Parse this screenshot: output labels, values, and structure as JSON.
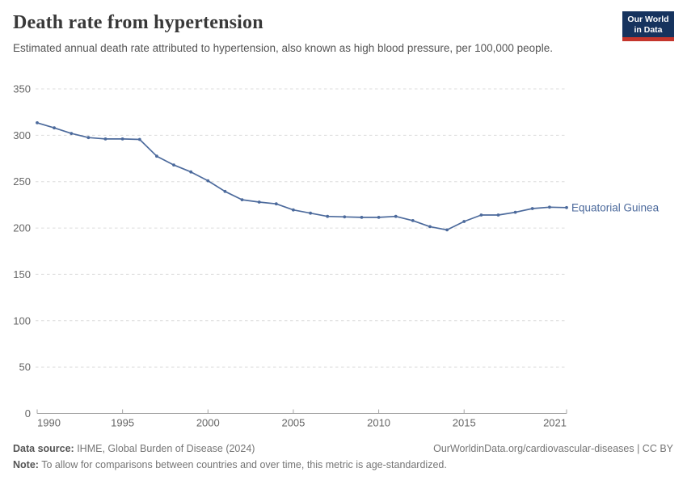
{
  "header": {
    "title": "Death rate from hypertension",
    "subtitle": "Estimated annual death rate attributed to hypertension, also known as high blood pressure, per 100,000 people.",
    "logo": {
      "line1": "Our World",
      "line2": "in Data"
    }
  },
  "chart_data": {
    "type": "line",
    "title": "Death rate from hypertension",
    "x": [
      1990,
      1991,
      1992,
      1993,
      1994,
      1995,
      1996,
      1997,
      1998,
      1999,
      2000,
      2001,
      2002,
      2003,
      2004,
      2005,
      2006,
      2007,
      2008,
      2009,
      2010,
      2011,
      2012,
      2013,
      2014,
      2015,
      2016,
      2017,
      2018,
      2019,
      2020,
      2021
    ],
    "series": [
      {
        "name": "Equatorial Guinea",
        "color": "#4c6a9c",
        "values": [
          313.5,
          308,
          302,
          297.5,
          296,
          296,
          295.5,
          277.5,
          268,
          260.5,
          251,
          239.5,
          230.5,
          228,
          226,
          219.5,
          216,
          212.5,
          212,
          211.5,
          211.5,
          212.5,
          208,
          201.5,
          198,
          207,
          214,
          214,
          217,
          221,
          222.5,
          222
        ]
      }
    ],
    "xlabel": "",
    "ylabel": "",
    "xlim": [
      1990,
      2021
    ],
    "ylim": [
      0,
      350
    ],
    "xticks": [
      1990,
      1995,
      2000,
      2005,
      2010,
      2015,
      2021
    ],
    "yticks": [
      0,
      50,
      100,
      150,
      200,
      250,
      300,
      350
    ],
    "grid": "horizontal-dashed",
    "legend_position": "end-of-line-label"
  },
  "footer": {
    "datasource_label": "Data source:",
    "datasource_value": " IHME, Global Burden of Disease (2024)",
    "attribution": "OurWorldinData.org/cardiovascular-diseases | CC BY",
    "note_label": "Note:",
    "note_value": " To allow for comparisons between countries and over time, this metric is age-standardized."
  },
  "colors": {
    "line": "#4c6a9c",
    "grid": "#dcdcdc",
    "axis": "#a5a5a5",
    "tick_label": "#666666",
    "logo_bg": "#16335e",
    "logo_stripe": "#c4352c"
  }
}
